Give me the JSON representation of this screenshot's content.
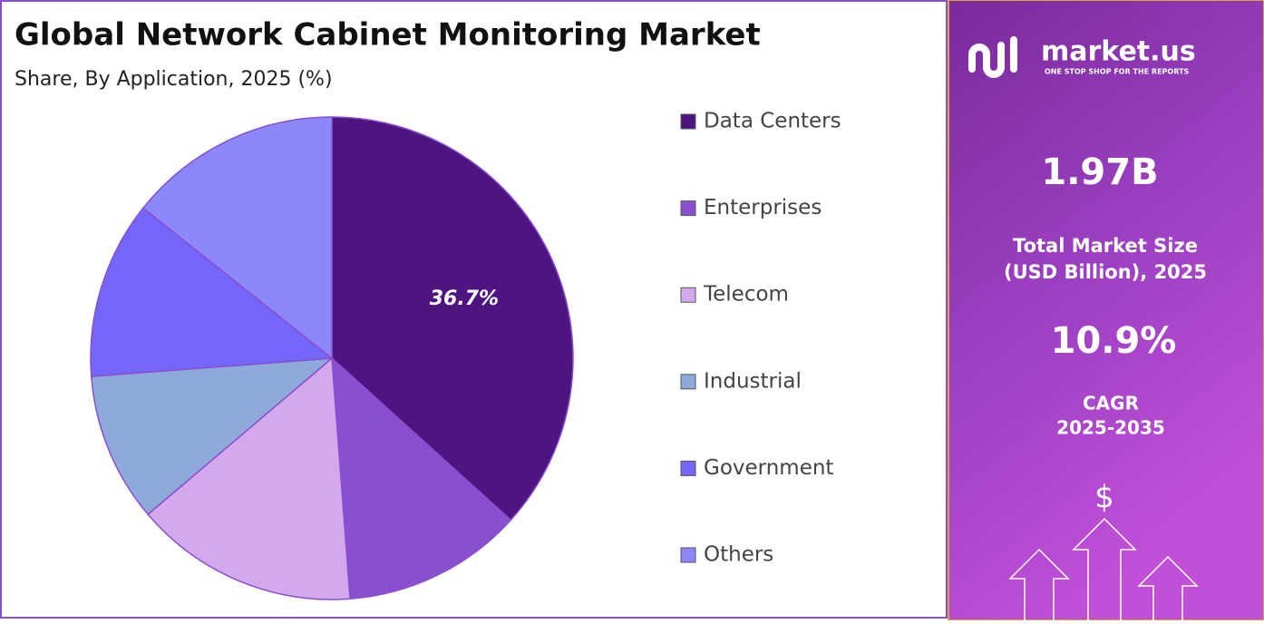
{
  "chart_data": {
    "type": "pie",
    "title": "Global Network Cabinet Monitoring Market",
    "subtitle": "Share, By Application, 2025 (%)",
    "categories": [
      "Data Centers",
      "Enterprises",
      "Telecom",
      "Industrial",
      "Government",
      "Others"
    ],
    "values": [
      36.7,
      12.1,
      15.0,
      10.0,
      11.9,
      14.3
    ],
    "value_labels": [
      "36.7%",
      null,
      null,
      null,
      null,
      null
    ],
    "colors": [
      "#4e1580",
      "#8a4fcf",
      "#d4a8ec",
      "#8eaadb",
      "#7466f8",
      "#8c88fb"
    ],
    "legend": "right"
  },
  "panel": {
    "brand": "market.us",
    "tagline": "ONE STOP SHOP FOR THE REPORTS",
    "market_size": "1.97B",
    "market_size_label": [
      "Total Market Size",
      "(USD Billion), 2025"
    ],
    "cagr": "10.9%",
    "cagr_label": [
      "CAGR",
      "2025-2035"
    ],
    "currency_symbol": "$"
  }
}
